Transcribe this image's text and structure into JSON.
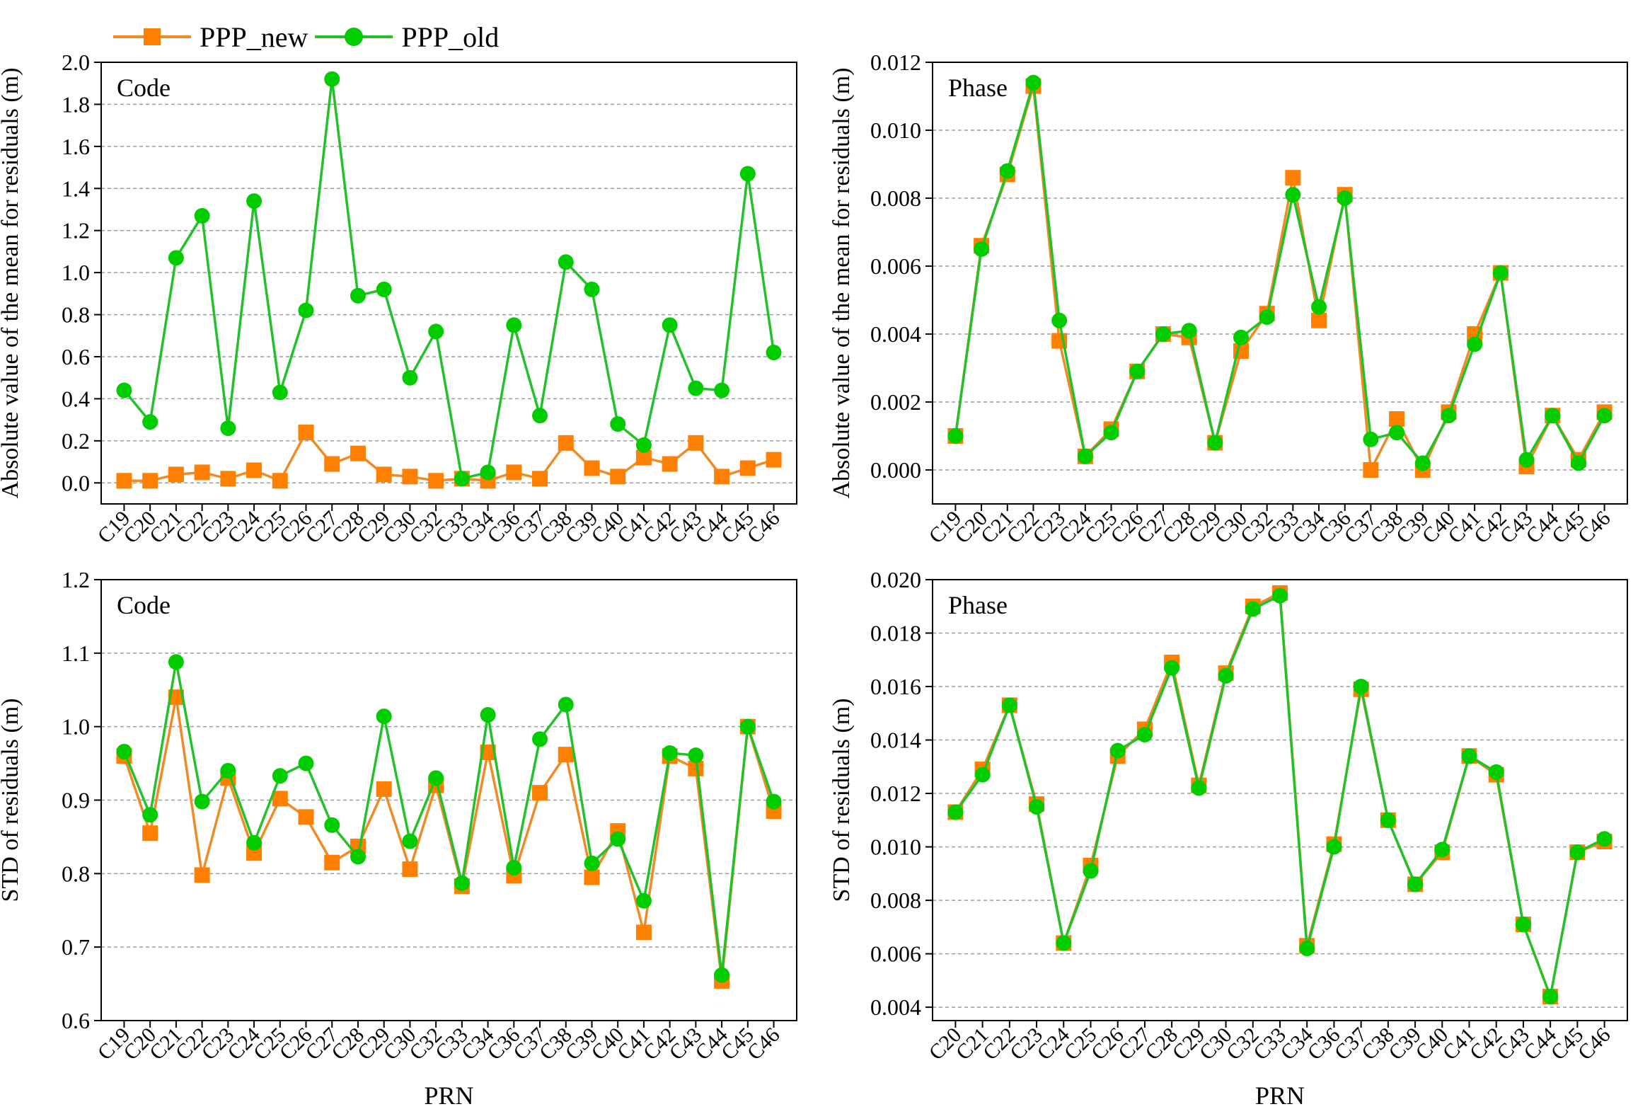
{
  "colors": {
    "new": "#ff7f00",
    "old": "#00cc00",
    "new_line": "#f08a24",
    "old_line": "#22c12a"
  },
  "legend": [
    {
      "label": "PPP_new",
      "marker": "square"
    },
    {
      "label": "PPP_old",
      "marker": "circle"
    }
  ],
  "chart_data": [
    {
      "type": "line",
      "panel_label": "Code",
      "xlabel": "",
      "ylabel": "Absolute value of the mean for residuals (m)",
      "ylim": [
        -0.1,
        2.0
      ],
      "yticks": [
        "0.0",
        "0.2",
        "0.4",
        "0.6",
        "0.8",
        "1.0",
        "1.2",
        "1.4",
        "1.6",
        "1.8",
        "2.0"
      ],
      "categories": [
        "C19",
        "C20",
        "C21",
        "C22",
        "C23",
        "C24",
        "C25",
        "C26",
        "C27",
        "C28",
        "C29",
        "C30",
        "C32",
        "C33",
        "C34",
        "C36",
        "C37",
        "C38",
        "C39",
        "C40",
        "C41",
        "C42",
        "C43",
        "C44",
        "C45",
        "C46"
      ],
      "series": [
        {
          "name": "PPP_new",
          "values": [
            0.01,
            0.01,
            0.04,
            0.05,
            0.02,
            0.06,
            0.01,
            0.24,
            0.09,
            0.14,
            0.04,
            0.03,
            0.01,
            0.02,
            0.01,
            0.05,
            0.02,
            0.19,
            0.07,
            0.03,
            0.12,
            0.09,
            0.19,
            0.03,
            0.07,
            0.11
          ]
        },
        {
          "name": "PPP_old",
          "values": [
            0.44,
            0.29,
            1.07,
            1.27,
            0.26,
            1.34,
            0.43,
            0.82,
            1.92,
            0.89,
            0.92,
            0.5,
            0.72,
            0.02,
            0.05,
            0.75,
            0.32,
            1.05,
            0.92,
            0.28,
            0.18,
            0.75,
            0.45,
            0.44,
            1.47,
            0.62
          ]
        }
      ]
    },
    {
      "type": "line",
      "panel_label": "Phase",
      "xlabel": "",
      "ylabel": "Absolute value of the mean for residuals (m)",
      "ylim": [
        -0.001,
        0.012
      ],
      "yticks": [
        "0.000",
        "0.002",
        "0.004",
        "0.006",
        "0.008",
        "0.010",
        "0.012"
      ],
      "categories": [
        "C19",
        "C20",
        "C21",
        "C22",
        "C23",
        "C24",
        "C25",
        "C26",
        "C27",
        "C28",
        "C29",
        "C30",
        "C32",
        "C33",
        "C34",
        "C36",
        "C37",
        "C38",
        "C39",
        "C40",
        "C41",
        "C42",
        "C43",
        "C44",
        "C45",
        "C46"
      ],
      "series": [
        {
          "name": "PPP_new",
          "values": [
            0.001,
            0.0066,
            0.0087,
            0.0113,
            0.0038,
            0.0004,
            0.0012,
            0.0029,
            0.004,
            0.0039,
            0.0008,
            0.0035,
            0.0046,
            0.0086,
            0.0044,
            0.0081,
            0.0,
            0.0015,
            0.0,
            0.0017,
            0.004,
            0.0058,
            0.0001,
            0.0016,
            0.0003,
            0.0017
          ]
        },
        {
          "name": "PPP_old",
          "values": [
            0.001,
            0.0065,
            0.0088,
            0.0114,
            0.0044,
            0.0004,
            0.0011,
            0.0029,
            0.004,
            0.0041,
            0.0008,
            0.0039,
            0.0045,
            0.0081,
            0.0048,
            0.008,
            0.0009,
            0.0011,
            0.0002,
            0.0016,
            0.0037,
            0.0058,
            0.0003,
            0.0016,
            0.0002,
            0.0016
          ]
        }
      ]
    },
    {
      "type": "line",
      "panel_label": "Code",
      "xlabel": "PRN",
      "ylabel": "STD of residuals (m)",
      "ylim": [
        0.6,
        1.2
      ],
      "yticks": [
        "0.6",
        "0.7",
        "0.8",
        "0.9",
        "1.0",
        "1.1",
        "1.2"
      ],
      "categories": [
        "C19",
        "C20",
        "C21",
        "C22",
        "C23",
        "C24",
        "C25",
        "C26",
        "C27",
        "C28",
        "C29",
        "C30",
        "C32",
        "C33",
        "C34",
        "C36",
        "C37",
        "C38",
        "C39",
        "C40",
        "C41",
        "C42",
        "C43",
        "C44",
        "C45",
        "C46"
      ],
      "series": [
        {
          "name": "PPP_new",
          "values": [
            0.96,
            0.855,
            1.04,
            0.798,
            0.93,
            0.828,
            0.902,
            0.877,
            0.815,
            0.837,
            0.915,
            0.806,
            0.92,
            0.783,
            0.965,
            0.797,
            0.91,
            0.962,
            0.795,
            0.858,
            0.72,
            0.96,
            0.943,
            0.654,
            1.0,
            0.885
          ]
        },
        {
          "name": "PPP_old",
          "values": [
            0.966,
            0.88,
            1.088,
            0.898,
            0.94,
            0.842,
            0.933,
            0.95,
            0.866,
            0.823,
            1.014,
            0.844,
            0.93,
            0.787,
            1.016,
            0.808,
            0.983,
            1.03,
            0.814,
            0.847,
            0.763,
            0.964,
            0.961,
            0.662,
            1.0,
            0.898
          ]
        }
      ]
    },
    {
      "type": "line",
      "panel_label": "Phase",
      "xlabel": "PRN",
      "ylabel": "STD of residuals (m)",
      "ylim": [
        0.0035,
        0.02
      ],
      "yticks": [
        "0.004",
        "0.006",
        "0.008",
        "0.010",
        "0.012",
        "0.014",
        "0.016",
        "0.018",
        "0.020"
      ],
      "categories": [
        "C20",
        "C21",
        "C22",
        "C23",
        "C24",
        "C25",
        "C26",
        "C27",
        "C28",
        "C29",
        "C30",
        "C32",
        "C33",
        "C34",
        "C36",
        "C37",
        "C38",
        "C39",
        "C40",
        "C41",
        "C42",
        "C43",
        "C44",
        "C45",
        "C46"
      ],
      "series": [
        {
          "name": "PPP_new",
          "values": [
            0.0113,
            0.0129,
            0.0153,
            0.0116,
            0.0064,
            0.0093,
            0.0134,
            0.0144,
            0.0169,
            0.0123,
            0.0165,
            0.019,
            0.0195,
            0.0063,
            0.0101,
            0.0159,
            0.011,
            0.0086,
            0.0098,
            0.0134,
            0.0127,
            0.0071,
            0.0044,
            0.0098,
            0.0102
          ]
        },
        {
          "name": "PPP_old",
          "values": [
            0.0113,
            0.0127,
            0.0153,
            0.0115,
            0.0064,
            0.0091,
            0.0136,
            0.0142,
            0.0167,
            0.0122,
            0.0164,
            0.0189,
            0.0194,
            0.0062,
            0.01,
            0.016,
            0.011,
            0.0086,
            0.0099,
            0.0134,
            0.0128,
            0.0071,
            0.0044,
            0.0098,
            0.0103
          ]
        }
      ]
    }
  ]
}
